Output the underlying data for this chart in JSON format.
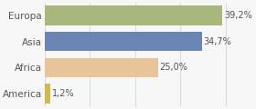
{
  "categories": [
    "Europa",
    "Asia",
    "Africa",
    "America"
  ],
  "values": [
    39.2,
    34.7,
    25.0,
    1.2
  ],
  "labels": [
    "39,2%",
    "34,7%",
    "25,0%",
    "1,2%"
  ],
  "bar_colors": [
    "#a8b87c",
    "#6b85b5",
    "#e8c49a",
    "#d4b84a"
  ],
  "background_color": "#f7f7f7",
  "xlim": [
    0,
    46
  ],
  "bar_height": 0.75,
  "label_fontsize": 7.0,
  "ytick_fontsize": 7.5
}
